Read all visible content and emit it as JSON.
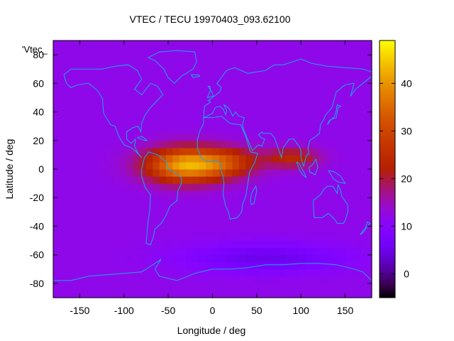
{
  "chart_data": {
    "type": "heatmap",
    "title": "VTEC / TECU 19970403_093.62100",
    "xlabel": "Longitude / deg",
    "ylabel": "Latitude / deg",
    "xlim": [
      -180,
      180
    ],
    "ylim": [
      -90,
      90
    ],
    "x_ticks": [
      -150,
      -100,
      -50,
      0,
      50,
      100,
      150
    ],
    "y_ticks": [
      -80,
      -60,
      -40,
      -20,
      0,
      20,
      40,
      60,
      80
    ],
    "colorbar": {
      "min": -5,
      "max": 49,
      "ticks": [
        0,
        10,
        20,
        30,
        40
      ]
    },
    "key_label": "'Vtec_",
    "background_vtec": 12,
    "enhancements": [
      {
        "name": "equatorial-anomaly-atlantic",
        "lon": -30,
        "lat": 3,
        "peak": 30,
        "sigma_lon": 45,
        "sigma_lat": 12
      },
      {
        "name": "equatorial-anomaly-africa",
        "lon": 20,
        "lat": 5,
        "peak": 12,
        "sigma_lon": 35,
        "sigma_lat": 10
      },
      {
        "name": "equatorial-anomaly-indian-ocean",
        "lon": 90,
        "lat": 8,
        "peak": 12,
        "sigma_lon": 30,
        "sigma_lat": 7
      }
    ],
    "depletions": [
      {
        "name": "southern-ocean-low",
        "lon": 60,
        "lat": -62,
        "peak": -7,
        "sigma_lon": 90,
        "sigma_lat": 10
      }
    ],
    "overlay": "coastlines"
  }
}
